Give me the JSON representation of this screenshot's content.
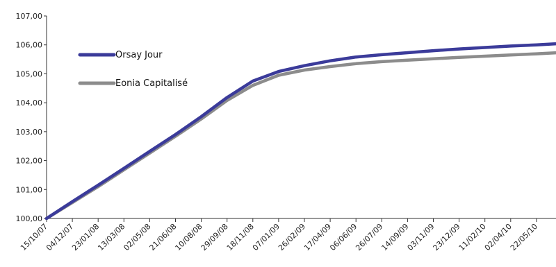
{
  "chart_data": {
    "type": "line",
    "title": "",
    "xlabel": "",
    "ylabel": "",
    "ylim": [
      100,
      107
    ],
    "y_ticks": [
      "100,00",
      "101,00",
      "102,00",
      "103,00",
      "104,00",
      "105,00",
      "106,00",
      "107,00"
    ],
    "x_ticks": [
      "15/10/07",
      "04/12/07",
      "23/01/08",
      "13/03/08",
      "02/05/08",
      "21/06/08",
      "10/08/08",
      "29/09/08",
      "18/11/08",
      "07/01/09",
      "26/02/09",
      "17/04/09",
      "06/06/09",
      "26/07/09",
      "14/09/09",
      "03/11/09",
      "23/12/09",
      "11/02/10",
      "02/04/10",
      "22/05/10"
    ],
    "grid": false,
    "legend_position": "upper-left",
    "series": [
      {
        "name": "Orsay Jour",
        "color": "#3b3b9a",
        "x": [
          "15/10/07",
          "04/12/07",
          "23/01/08",
          "13/03/08",
          "02/05/08",
          "21/06/08",
          "10/08/08",
          "29/09/08",
          "18/11/08",
          "07/01/09",
          "26/02/09",
          "17/04/09",
          "06/06/09",
          "26/07/09",
          "14/09/09",
          "03/11/09",
          "23/12/09",
          "11/02/10",
          "02/04/10",
          "22/05/10",
          "01/07/10"
        ],
        "values": [
          100.0,
          100.58,
          101.15,
          101.73,
          102.32,
          102.9,
          103.52,
          104.18,
          104.75,
          105.08,
          105.28,
          105.45,
          105.58,
          105.66,
          105.73,
          105.8,
          105.86,
          105.91,
          105.96,
          106.0,
          106.05
        ]
      },
      {
        "name": "Eonia Capitalisé",
        "color": "#8c8c8c",
        "x": [
          "15/10/07",
          "04/12/07",
          "23/01/08",
          "13/03/08",
          "02/05/08",
          "21/06/08",
          "10/08/08",
          "29/09/08",
          "18/11/08",
          "07/01/09",
          "26/02/09",
          "17/04/09",
          "06/06/09",
          "26/07/09",
          "14/09/09",
          "03/11/09",
          "23/12/09",
          "11/02/10",
          "02/04/10",
          "22/05/10",
          "01/07/10"
        ],
        "values": [
          100.0,
          100.55,
          101.1,
          101.68,
          102.26,
          102.84,
          103.44,
          104.08,
          104.6,
          104.95,
          105.13,
          105.25,
          105.35,
          105.42,
          105.47,
          105.52,
          105.57,
          105.61,
          105.65,
          105.69,
          105.74
        ]
      }
    ]
  }
}
